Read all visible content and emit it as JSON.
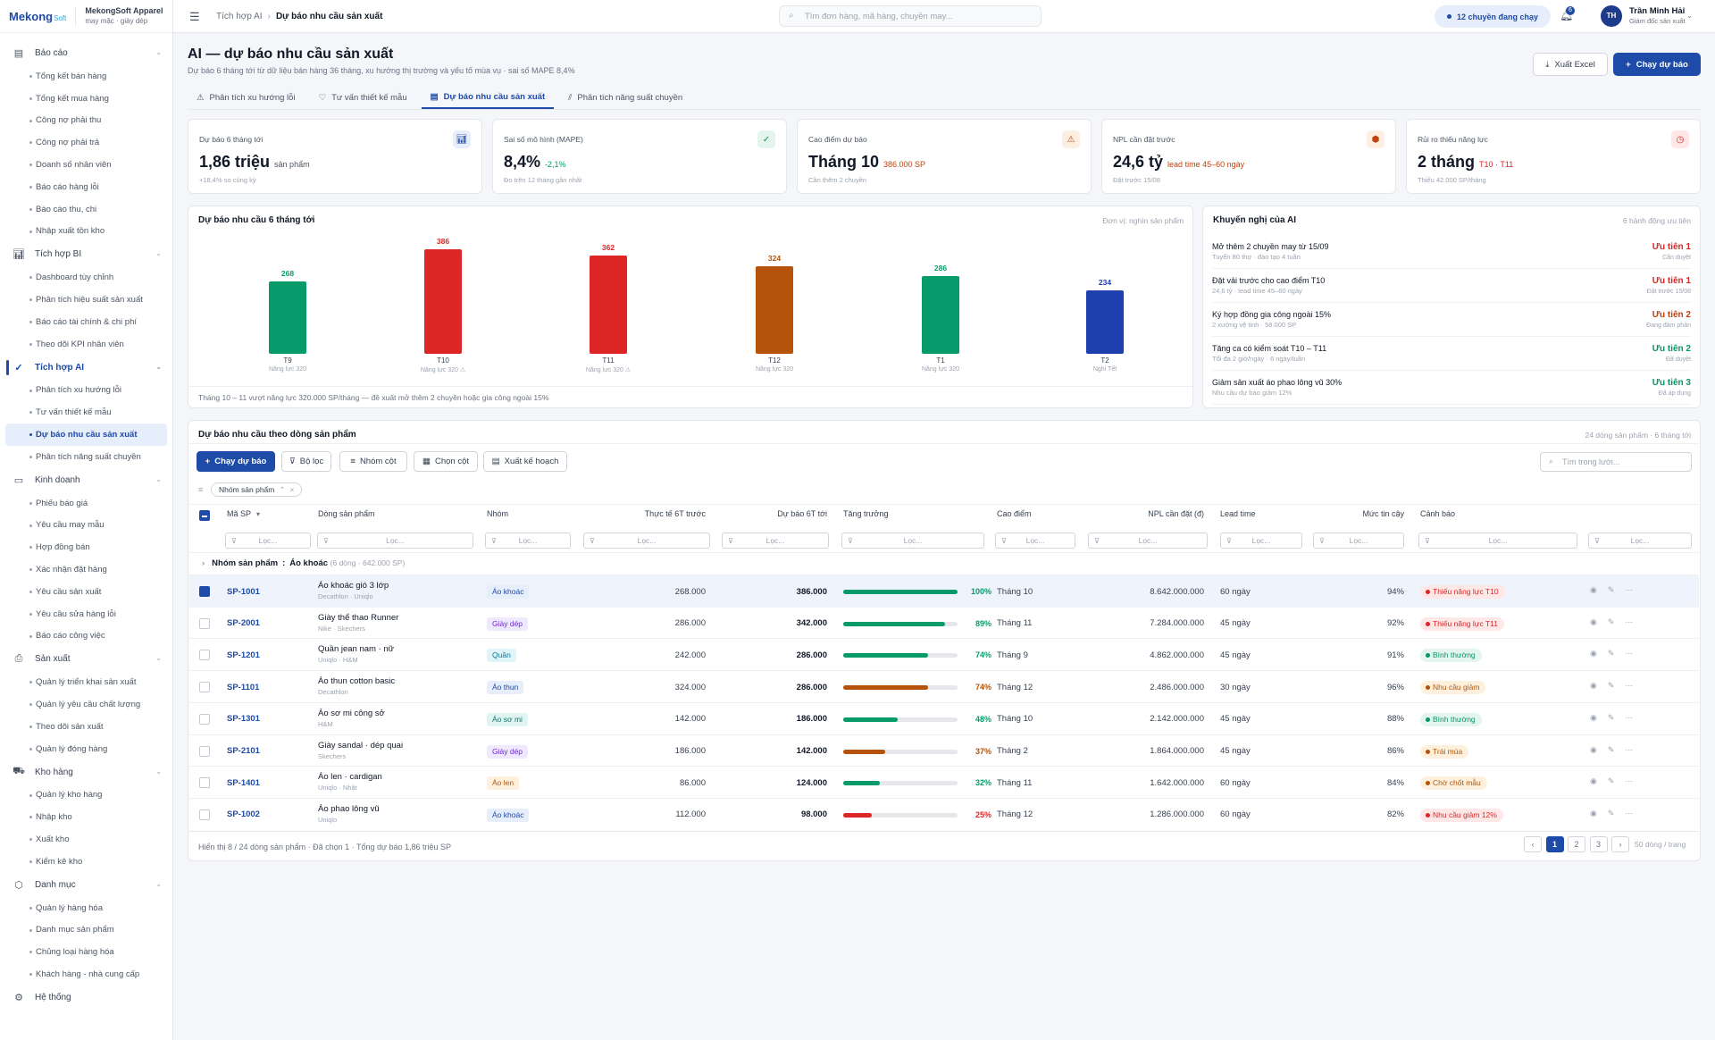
{
  "app": {
    "logo_main": "Mekong",
    "logo_suffix": "Soft",
    "org_name": "MekongSoft Apparel",
    "org_sub": "may mặc · giày dép"
  },
  "sidebar": [
    {
      "label": "Báo cáo",
      "icon": "document-icon",
      "items": [
        "Tổng kết bán hàng",
        "Tổng kết mua hàng",
        "Công nợ phải thu",
        "Công nợ phải trả",
        "Doanh số nhân viên",
        "Báo cáo hàng lỗi",
        "Báo cáo thu, chi",
        "Nhập xuất tồn kho"
      ]
    },
    {
      "label": "Tích hợp BI",
      "icon": "bar-chart-icon",
      "items": [
        "Dashboard tùy chỉnh",
        "Phân tích hiệu suất sản xuất",
        "Báo cáo tài chính & chi phí",
        "Theo dõi KPI nhân viên"
      ]
    },
    {
      "label": "Tích hợp AI",
      "icon": "ai-check-icon",
      "active": true,
      "items": [
        "Phân tích xu hướng lỗi",
        "Tư vấn thiết kế mẫu",
        "Dự báo nhu cầu sản xuất",
        "Phân tích năng suất chuyền"
      ]
    },
    {
      "label": "Kinh doanh",
      "icon": "wallet-icon",
      "items": [
        "Phiếu báo giá",
        "Yêu cầu may mẫu",
        "Hợp đồng bán",
        "Xác nhận đặt hàng",
        "Yêu cầu sản xuất",
        "Yêu cầu sửa hàng lỗi",
        "Báo cáo công việc"
      ]
    },
    {
      "label": "Sản xuất",
      "icon": "printer-icon",
      "items": [
        "Quản lý triển khai sản xuất",
        "Quản lý yêu cầu chất lượng",
        "Theo dõi sản xuất",
        "Quản lý đóng hàng"
      ]
    },
    {
      "label": "Kho hàng",
      "icon": "truck-icon",
      "items": [
        "Quản lý kho hàng",
        "Nhập kho",
        "Xuất kho",
        "Kiểm kê kho"
      ]
    },
    {
      "label": "Danh mục",
      "icon": "box-icon",
      "items": [
        "Quản lý hàng hóa",
        "Danh mục sản phẩm",
        "Chủng loại hàng hóa",
        "Khách hàng - nhà cung cấp"
      ]
    },
    {
      "label": "Hệ thống",
      "icon": "gear-icon",
      "items": []
    }
  ],
  "sidebar_active_item": "Dự báo nhu cầu sản xuất",
  "topbar": {
    "crumb_parent": "Tích hợp AI",
    "crumb_current": "Dự báo nhu cầu sản xuất",
    "search_placeholder": "Tìm đơn hàng, mã hàng, chuyền may...",
    "lines_running": "12 chuyền đang chạy",
    "notif_count": "6",
    "user_initials": "TH",
    "user_name": "Trần Minh Hải",
    "user_role": "Giám đốc sản xuất"
  },
  "page": {
    "title": "AI — dự báo nhu cầu sản xuất",
    "subtitle": "Dự báo 6 tháng tới từ dữ liệu bán hàng 36 tháng, xu hướng thị trường và yếu tố mùa vụ · sai số MAPE 8,4%",
    "export_label": "Xuất Excel",
    "run_label": "Chạy dự báo"
  },
  "tabs": [
    "Phân tích xu hướng lỗi",
    "Tư vấn thiết kế mẫu",
    "Dự báo nhu cầu sản xuất",
    "Phân tích năng suất chuyền"
  ],
  "kpis": [
    {
      "label": "Dự báo 6 tháng tới",
      "value": "1,86 triệu",
      "unit": "sản phẩm",
      "note": "+18,4% so cùng kỳ",
      "icon": "bar-chart-icon",
      "color": "#1e4aa8",
      "bg": "#e6edfb",
      "unit_color": "#4b5563"
    },
    {
      "label": "Sai số mô hình (MAPE)",
      "value": "8,4%",
      "unit": "-2,1%",
      "note": "Đo trên 12 tháng gần nhất",
      "icon": "check-circle-icon",
      "color": "#059669",
      "bg": "#e3f5ec",
      "unit_color": "#059669"
    },
    {
      "label": "Cao điểm dự báo",
      "value": "Tháng 10",
      "unit": "386.000 SP",
      "note": "Cần thêm 2 chuyền",
      "icon": "warning-icon",
      "color": "#c2410c",
      "bg": "#fdeee2",
      "unit_color": "#c2410c"
    },
    {
      "label": "NPL cần đặt trước",
      "value": "24,6 tỷ",
      "unit": "lead time 45–60 ngày",
      "note": "Đặt trước 15/08",
      "icon": "package-icon",
      "color": "#c2410c",
      "bg": "#fdeee2",
      "unit_color": "#c2410c"
    },
    {
      "label": "Rủi ro thiếu năng lực",
      "value": "2 tháng",
      "unit": "T10 · T11",
      "note": "Thiếu 42.000 SP/tháng",
      "icon": "clock-icon",
      "color": "#dc2626",
      "bg": "#fde7e7",
      "unit_color": "#dc2626"
    }
  ],
  "chart_data": {
    "type": "bar",
    "title": "Dự báo nhu cầu 6 tháng tới",
    "unit_note": "Đơn vị: nghìn sản phẩm",
    "categories": [
      "T9",
      "T10",
      "T11",
      "T12",
      "T1",
      "T2"
    ],
    "values": [
      268,
      386,
      362,
      324,
      286,
      234
    ],
    "category_notes": [
      "Năng lực 320",
      "Năng lực 320 ⚠",
      "Năng lực 320 ⚠",
      "Năng lực 320",
      "Năng lực 320",
      "Nghỉ Tết"
    ],
    "bar_colors": [
      "#079b6b",
      "#dd2626",
      "#dd2626",
      "#b45309",
      "#079b6b",
      "#1e40af"
    ],
    "ylim": [
      0,
      400
    ],
    "footer": "Tháng 10 – 11 vượt năng lực 320.000 SP/tháng — đề xuất mở thêm 2 chuyền hoặc gia công ngoài 15%"
  },
  "recommend": {
    "title": "Khuyến nghị của AI",
    "right": "6 hành động ưu tiên",
    "items": [
      {
        "title": "Mở thêm 2 chuyền may từ 15/09",
        "sub": "Tuyển 80 thợ · đào tạo 4 tuần",
        "priority": "Ưu tiên 1",
        "status": "Cần duyệt",
        "color": "#dc2626"
      },
      {
        "title": "Đặt vải trước cho cao điểm T10",
        "sub": "24,6 tỷ · lead time 45–60 ngày",
        "priority": "Ưu tiên 1",
        "status": "Đặt trước 15/08",
        "color": "#dc2626"
      },
      {
        "title": "Ký hợp đồng gia công ngoài 15%",
        "sub": "2 xưởng vệ tinh · 58.000 SP",
        "priority": "Ưu tiên 2",
        "status": "Đang đàm phán",
        "color": "#c2410c"
      },
      {
        "title": "Tăng ca có kiểm soát T10 – T11",
        "sub": "Tối đa 2 giờ/ngày · 6 ngày/tuần",
        "priority": "Ưu tiên 2",
        "status": "Đã duyệt",
        "color": "#059669"
      },
      {
        "title": "Giảm sản xuất áo phao lông vũ 30%",
        "sub": "Nhu cầu dự báo giảm 12%",
        "priority": "Ưu tiên 3",
        "status": "Đã áp dụng",
        "color": "#059669"
      }
    ]
  },
  "table": {
    "title": "Dự báo nhu cầu theo dòng sản phẩm",
    "right": "24 dòng sản phẩm · 6 tháng tới",
    "toolbar": {
      "run": "Chạy dự báo",
      "filter": "Bộ lọc",
      "group": "Nhóm cột",
      "columns": "Chọn cột",
      "plan": "Xuất kế hoạch",
      "search_placeholder": "Tìm trong lưới..."
    },
    "chip": "Nhóm sản phẩm",
    "filter_placeholder": "Lọc...",
    "columns": [
      "Mã SP",
      "Dòng sản phẩm",
      "Nhóm",
      "Thực tế 6T trước",
      "Dự báo 6T tới",
      "Tăng trưởng",
      "Cao điểm",
      "NPL cần đặt (đ)",
      "Lead time",
      "Mức tin cậy",
      "Cảnh báo"
    ],
    "group_label": "Nhóm sản phẩm",
    "group_value": "Áo khoác",
    "group_meta": "(6 dòng · 642.000 SP)",
    "rows": [
      {
        "code": "SP-1001",
        "name": "Áo khoác gió 3 lớp",
        "brand": "Decathlon · Uniqlo",
        "group": "Áo khoác",
        "group_fg": "#1e4aa8",
        "group_bg": "#e6edfb",
        "actual": "268.000",
        "forecast": "386.000",
        "growth": 100,
        "growth_text": "100%",
        "bar_color": "#079b6b",
        "peak": "Tháng 10",
        "npl": "8.642.000.000",
        "lead": "60 ngày",
        "conf": "94%",
        "warn": "Thiếu năng lực T10",
        "warn_fg": "#dc2626",
        "warn_bg": "#fde7e7",
        "selected": true
      },
      {
        "code": "SP-2001",
        "name": "Giày thể thao Runner",
        "brand": "Nike · Skechers",
        "group": "Giày dép",
        "group_fg": "#6d28d9",
        "group_bg": "#efe9fd",
        "actual": "286.000",
        "forecast": "342.000",
        "growth": 89,
        "growth_text": "89%",
        "bar_color": "#079b6b",
        "peak": "Tháng 11",
        "npl": "7.284.000.000",
        "lead": "45 ngày",
        "conf": "92%",
        "warn": "Thiếu năng lực T11",
        "warn_fg": "#dc2626",
        "warn_bg": "#fde7e7",
        "selected": false
      },
      {
        "code": "SP-1201",
        "name": "Quần jean nam · nữ",
        "brand": "Uniqlo · H&M",
        "group": "Quần",
        "group_fg": "#0e7490",
        "group_bg": "#e0f5f9",
        "actual": "242.000",
        "forecast": "286.000",
        "growth": 74,
        "growth_text": "74%",
        "bar_color": "#079b6b",
        "peak": "Tháng 9",
        "npl": "4.862.000.000",
        "lead": "45 ngày",
        "conf": "91%",
        "warn": "Bình thường",
        "warn_fg": "#059669",
        "warn_bg": "#e3f5ec",
        "selected": false
      },
      {
        "code": "SP-1101",
        "name": "Áo thun cotton basic",
        "brand": "Decathlon",
        "group": "Áo thun",
        "group_fg": "#1e4aa8",
        "group_bg": "#e6edfb",
        "actual": "324.000",
        "forecast": "286.000",
        "growth": 74,
        "growth_text": "74%",
        "bar_color": "#b45309",
        "peak": "Tháng 12",
        "npl": "2.486.000.000",
        "lead": "30 ngày",
        "conf": "96%",
        "warn": "Nhu cầu giảm",
        "warn_fg": "#b45309",
        "warn_bg": "#fdf1de",
        "selected": false
      },
      {
        "code": "SP-1301",
        "name": "Áo sơ mi công sở",
        "brand": "H&M",
        "group": "Áo sơ mi",
        "group_fg": "#0f766e",
        "group_bg": "#e0f5f1",
        "actual": "142.000",
        "forecast": "186.000",
        "growth": 48,
        "growth_text": "48%",
        "bar_color": "#079b6b",
        "peak": "Tháng 10",
        "npl": "2.142.000.000",
        "lead": "45 ngày",
        "conf": "88%",
        "warn": "Bình thường",
        "warn_fg": "#059669",
        "warn_bg": "#e3f5ec",
        "selected": false
      },
      {
        "code": "SP-2101",
        "name": "Giày sandal · dép quai",
        "brand": "Skechers",
        "group": "Giày dép",
        "group_fg": "#6d28d9",
        "group_bg": "#efe9fd",
        "actual": "186.000",
        "forecast": "142.000",
        "growth": 37,
        "growth_text": "37%",
        "bar_color": "#b45309",
        "peak": "Tháng 2",
        "npl": "1.864.000.000",
        "lead": "45 ngày",
        "conf": "86%",
        "warn": "Trái mùa",
        "warn_fg": "#b45309",
        "warn_bg": "#fdf1de",
        "selected": false
      },
      {
        "code": "SP-1401",
        "name": "Áo len · cardigan",
        "brand": "Uniqlo · Nhật",
        "group": "Áo len",
        "group_fg": "#b45309",
        "group_bg": "#fdf1de",
        "actual": "86.000",
        "forecast": "124.000",
        "growth": 32,
        "growth_text": "32%",
        "bar_color": "#079b6b",
        "peak": "Tháng 11",
        "npl": "1.642.000.000",
        "lead": "60 ngày",
        "conf": "84%",
        "warn": "Chờ chốt mẫu",
        "warn_fg": "#b45309",
        "warn_bg": "#fdf1de",
        "selected": false
      },
      {
        "code": "SP-1002",
        "name": "Áo phao lông vũ",
        "brand": "Uniqlo",
        "group": "Áo khoác",
        "group_fg": "#1e4aa8",
        "group_bg": "#e6edfb",
        "actual": "112.000",
        "forecast": "98.000",
        "growth": 25,
        "growth_text": "25%",
        "bar_color": "#dc2626",
        "peak": "Tháng 12",
        "npl": "1.286.000.000",
        "lead": "60 ngày",
        "conf": "82%",
        "warn": "Nhu cầu giảm 12%",
        "warn_fg": "#dc2626",
        "warn_bg": "#fde7e7",
        "selected": false
      }
    ],
    "footer": "Hiển thị 8 / 24 dòng sản phẩm · Đã chọn 1 · Tổng dự báo 1,86 triệu SP",
    "pages": [
      "‹",
      "1",
      "2",
      "3",
      "›"
    ],
    "page_size": "50 dòng / trang"
  }
}
